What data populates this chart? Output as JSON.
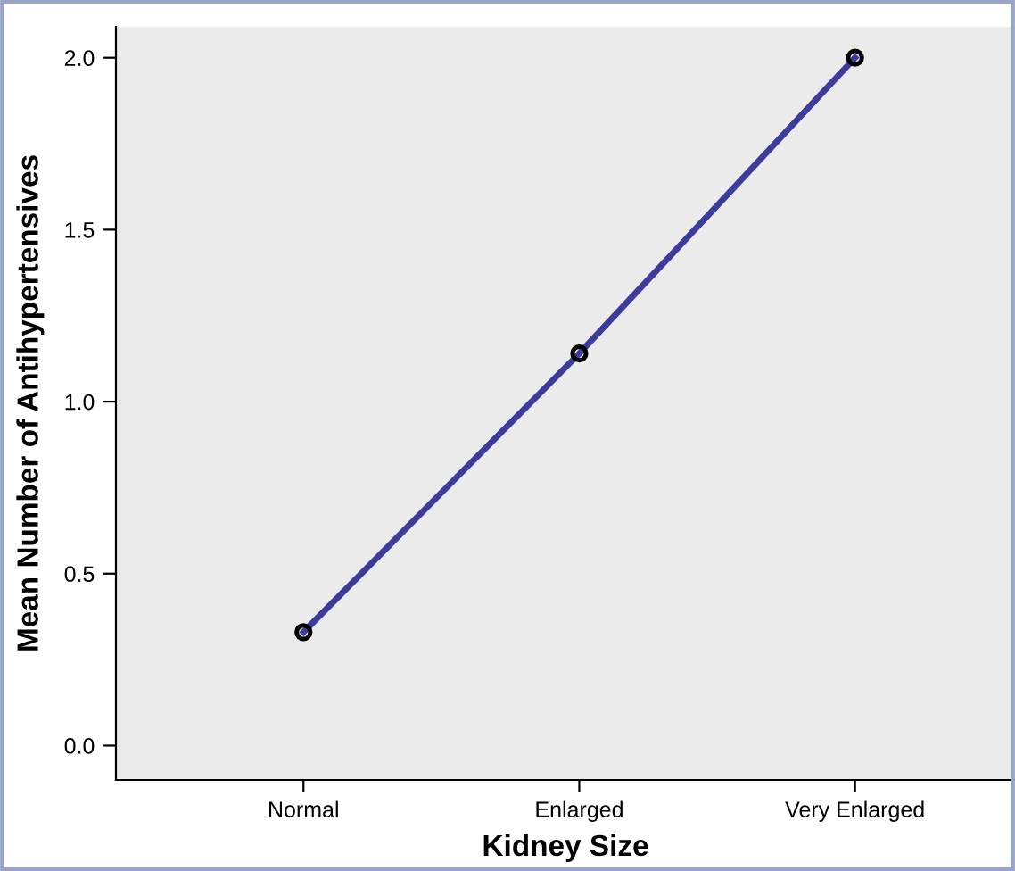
{
  "chart_data": {
    "type": "line",
    "xlabel": "Kidney Size",
    "ylabel": "Mean Number of Antihypertensives",
    "categories": [
      "Normal",
      "Enlarged",
      "Very Enlarged"
    ],
    "series": [
      {
        "color": "#3c3c9c",
        "values": [
          0.33,
          1.14,
          2.0
        ]
      }
    ],
    "ylim": [
      -0.1,
      2.09
    ],
    "yticks": [
      {
        "value": 0.0,
        "label": "0.0"
      },
      {
        "value": 0.5,
        "label": "0.5"
      },
      {
        "value": 1.0,
        "label": "1.0"
      },
      {
        "value": 1.5,
        "label": "1.5"
      },
      {
        "value": 2.0,
        "label": "2.0"
      }
    ],
    "marker": "circle",
    "line_style": "solid",
    "grid": false,
    "legend": false
  }
}
